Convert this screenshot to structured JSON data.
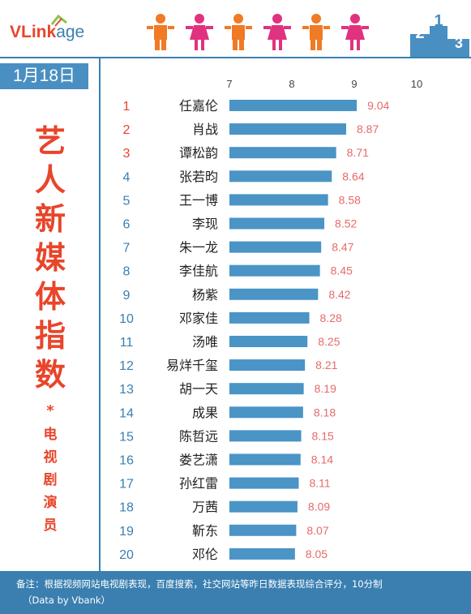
{
  "header": {
    "logo_main": "VLink",
    "logo_tail": "age",
    "podium_numbers": [
      "2",
      "1",
      "3"
    ]
  },
  "sidebar": {
    "date": "1月18日",
    "title_chars": [
      "艺",
      "人",
      "新",
      "媒",
      "体",
      "指",
      "数"
    ],
    "star": "*",
    "subtitle_chars": [
      "电",
      "视",
      "剧",
      "演",
      "员"
    ]
  },
  "colors": {
    "bar": "#4a94c6",
    "rank_top": "#e8452b",
    "rank_rest": "#3a7fb0",
    "value": "#e76a6a",
    "accent_blue": "#3a7fb0",
    "person_orange": "#f07a25",
    "person_pink": "#e0327f"
  },
  "chart_data": {
    "type": "bar",
    "orientation": "horizontal",
    "xlim": [
      7,
      10
    ],
    "xticks": [
      7,
      8,
      9,
      10
    ],
    "ranks": [
      "1",
      "2",
      "3",
      "4",
      "5",
      "6",
      "7",
      "8",
      "9",
      "10",
      "11",
      "12",
      "13",
      "14",
      "15",
      "16",
      "17",
      "18",
      "19",
      "20"
    ],
    "categories": [
      "任嘉伦",
      "肖战",
      "谭松韵",
      "张若昀",
      "王一博",
      "李现",
      "朱一龙",
      "李佳航",
      "杨紫",
      "邓家佳",
      "汤唯",
      "易烊千玺",
      "胡一天",
      "成果",
      "陈哲远",
      "娄艺潇",
      "孙红雷",
      "万茜",
      "靳东",
      "邓伦"
    ],
    "values": [
      9.04,
      8.87,
      8.71,
      8.64,
      8.58,
      8.52,
      8.47,
      8.45,
      8.42,
      8.28,
      8.25,
      8.21,
      8.19,
      8.18,
      8.15,
      8.14,
      8.11,
      8.09,
      8.07,
      8.05
    ],
    "grid": false
  },
  "footer": {
    "note": "备注：根据视频网站电视剧表现，百度搜索，社交网站等昨日数据表现综合评分，10分制",
    "credit": "（Data by Vbank）"
  }
}
